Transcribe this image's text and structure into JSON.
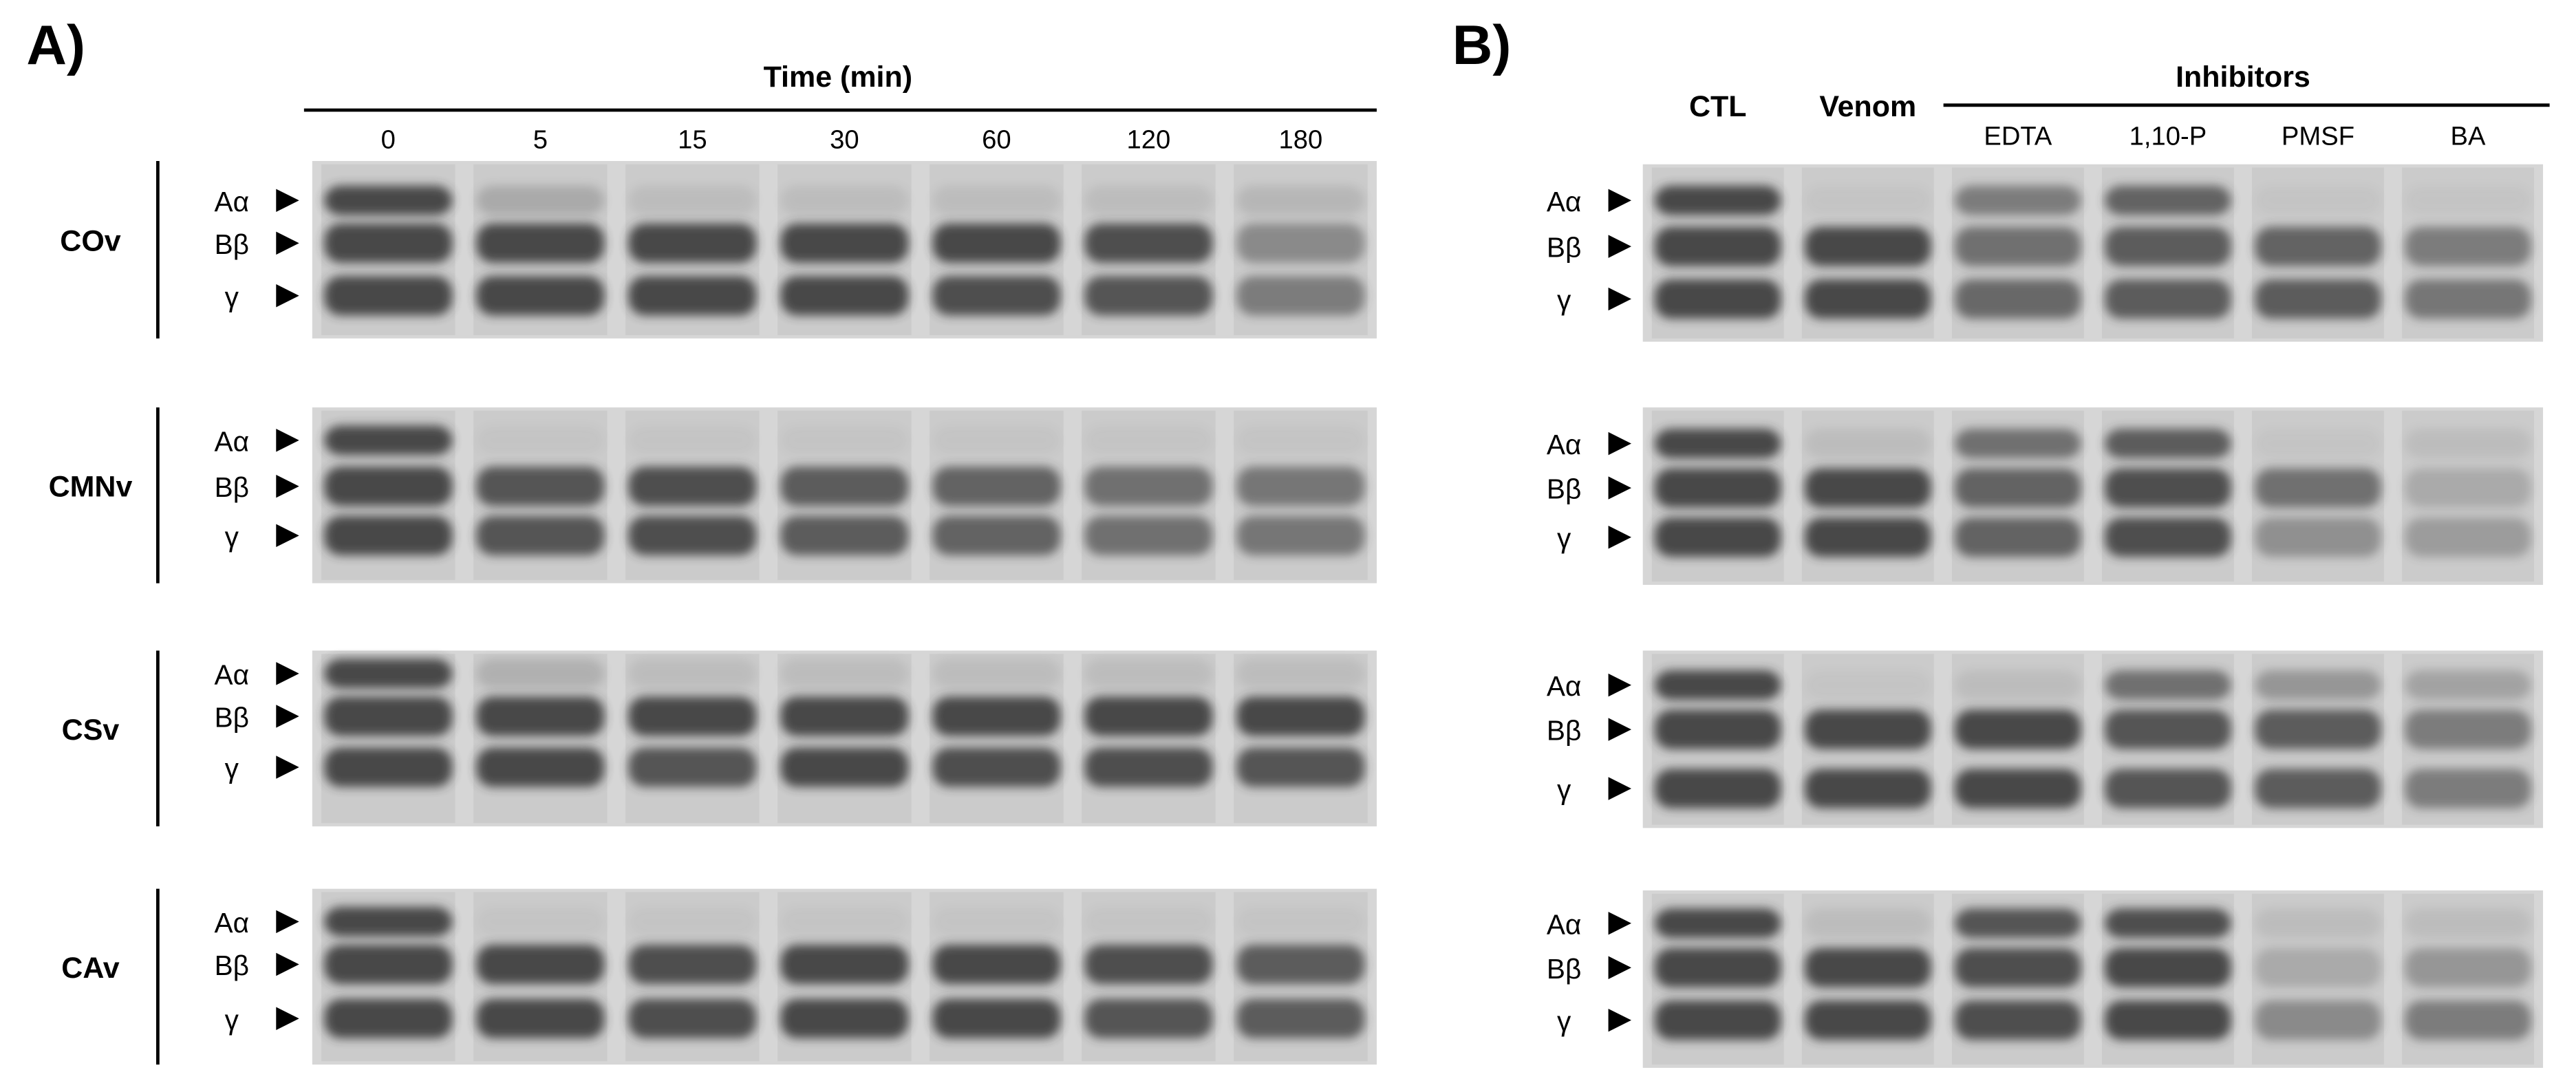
{
  "panel_a": {
    "label": "A)",
    "axis_title": "Time (min)",
    "lanes": [
      "0",
      "5",
      "15",
      "30",
      "60",
      "120",
      "180"
    ],
    "rows": [
      {
        "label": "COv",
        "bands": [
          "Aα",
          "Bβ",
          "γ"
        ]
      },
      {
        "label": "CMNv",
        "bands": [
          "Aα",
          "Bβ",
          "γ"
        ]
      },
      {
        "label": "CSv",
        "bands": [
          "Aα",
          "Bβ",
          "γ"
        ]
      },
      {
        "label": "CAv",
        "bands": [
          "Aα",
          "Bβ",
          "γ"
        ]
      }
    ]
  },
  "panel_b": {
    "label": "B)",
    "lanes": [
      "CTL",
      "Venom"
    ],
    "group_title": "Inhibitors",
    "group_lanes": [
      "EDTA",
      "1,10-P",
      "PMSF",
      "BA"
    ],
    "rows": [
      {
        "bands": [
          "Aα",
          "Bβ",
          "γ"
        ]
      },
      {
        "bands": [
          "Aα",
          "Bβ",
          "γ"
        ]
      },
      {
        "bands": [
          "Aα",
          "Bβ",
          "γ"
        ]
      },
      {
        "bands": [
          "Aα",
          "Bβ",
          "γ"
        ]
      }
    ]
  }
}
